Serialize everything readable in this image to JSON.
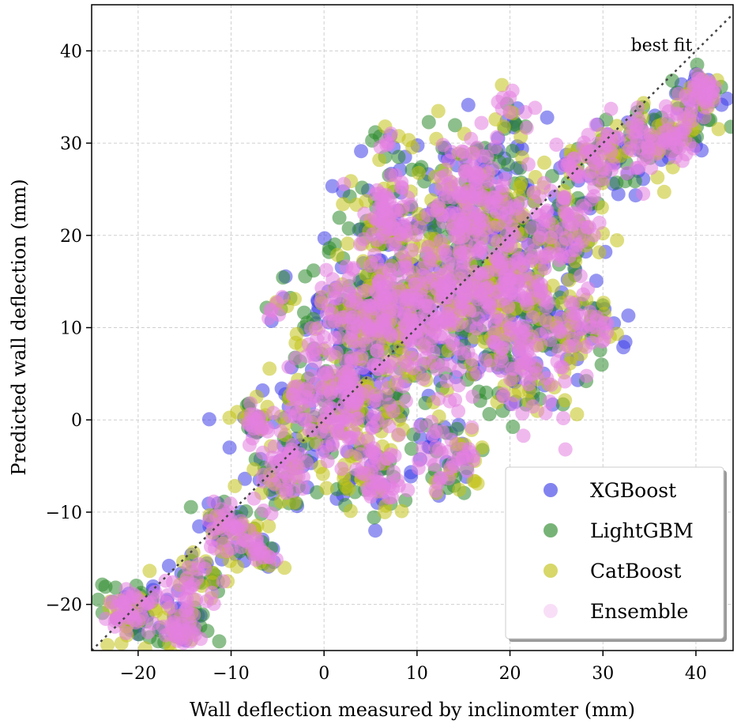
{
  "chart_data": {
    "type": "scatter",
    "xlabel": "Wall deflection measured by inclinomter (mm)",
    "ylabel": "Predicted wall deflection (mm)",
    "xlim": [
      -25,
      44
    ],
    "ylim": [
      -25,
      45
    ],
    "xticks": [
      -20,
      -10,
      0,
      10,
      20,
      30,
      40
    ],
    "yticks": [
      -20,
      -10,
      0,
      10,
      20,
      30,
      40
    ],
    "xtick_labels": [
      "−20",
      "−10",
      "0",
      "10",
      "20",
      "30",
      "40"
    ],
    "ytick_labels": [
      "−20",
      "−10",
      "0",
      "10",
      "20",
      "30",
      "40"
    ],
    "grid": true,
    "legend_position": "lower-right",
    "reference_line": {
      "label": "best fit",
      "slope": 1,
      "intercept": 0,
      "style": "dotted"
    },
    "series": [
      {
        "name": "XGBoost",
        "color": "#4040e8"
      },
      {
        "name": "LightGBM",
        "color": "#2e8b2e"
      },
      {
        "name": "CatBoost",
        "color": "#c2c21a"
      },
      {
        "name": "Ensemble",
        "color": "#e37fe0"
      }
    ],
    "clusters": [
      {
        "x": -20.5,
        "y": -20.5,
        "spread": 1.6,
        "n": 45
      },
      {
        "x": -15.5,
        "y": -23.0,
        "spread": 1.2,
        "n": 30
      },
      {
        "x": -14.0,
        "y": -18.0,
        "spread": 2.0,
        "n": 30
      },
      {
        "x": -10.0,
        "y": -11.5,
        "spread": 1.8,
        "n": 40
      },
      {
        "x": -7.0,
        "y": -14.5,
        "spread": 1.2,
        "n": 15
      },
      {
        "x": -4.5,
        "y": -5.5,
        "spread": 2.2,
        "n": 40
      },
      {
        "x": -7.5,
        "y": -0.5,
        "spread": 1.2,
        "n": 20
      },
      {
        "x": 2.0,
        "y": 2.0,
        "spread": 4.0,
        "n": 160
      },
      {
        "x": 4.5,
        "y": 12.0,
        "spread": 3.5,
        "n": 110
      },
      {
        "x": 7.0,
        "y": 22.0,
        "spread": 2.8,
        "n": 60
      },
      {
        "x": 12.0,
        "y": 12.0,
        "spread": 5.0,
        "n": 220
      },
      {
        "x": 16.0,
        "y": 24.0,
        "spread": 4.0,
        "n": 130
      },
      {
        "x": 20.0,
        "y": 15.0,
        "spread": 4.0,
        "n": 130
      },
      {
        "x": 22.0,
        "y": 5.0,
        "spread": 3.0,
        "n": 50
      },
      {
        "x": 13.0,
        "y": -4.0,
        "spread": 2.5,
        "n": 40
      },
      {
        "x": 5.5,
        "y": -6.5,
        "spread": 2.0,
        "n": 35
      },
      {
        "x": 26.0,
        "y": 21.0,
        "spread": 2.5,
        "n": 50
      },
      {
        "x": 27.5,
        "y": 10.0,
        "spread": 2.5,
        "n": 40
      },
      {
        "x": 29.0,
        "y": 28.0,
        "spread": 2.0,
        "n": 40
      },
      {
        "x": 34.0,
        "y": 30.0,
        "spread": 2.0,
        "n": 40
      },
      {
        "x": 38.0,
        "y": 31.0,
        "spread": 1.8,
        "n": 35
      },
      {
        "x": 40.5,
        "y": 35.5,
        "spread": 1.3,
        "n": 35
      },
      {
        "x": -5.5,
        "y": 12.0,
        "spread": 0.8,
        "n": 5
      },
      {
        "x": 6.5,
        "y": 30.0,
        "spread": 1.0,
        "n": 6
      },
      {
        "x": 20.5,
        "y": 33.0,
        "spread": 1.2,
        "n": 10
      }
    ]
  }
}
